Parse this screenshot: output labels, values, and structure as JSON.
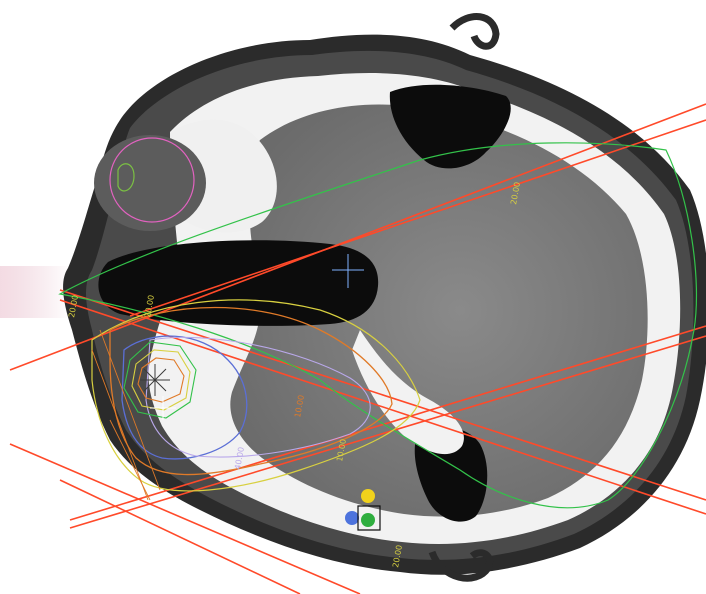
{
  "image": {
    "subject": "axial-ct-head-radiotherapy-plan",
    "background_color": "#ffffff"
  },
  "colors": {
    "body_outline": "#2b2b2b",
    "skull_bone": "#f2f2f2",
    "soft_tissue": "#4a4a4a",
    "brain": "#7c7c7c",
    "air": "#0c0c0c",
    "beam_lines": "#ff4a2a",
    "isodose_outer_green": "#33c24a",
    "isodose_yellow": "#d8d040",
    "isodose_orange": "#e07a28",
    "isodose_blue": "#5b6fd6",
    "isodose_lavender": "#b9a8ea",
    "eye_contour": "#e262c0",
    "lens_contour": "#7bc043",
    "isocenter_cross": "#7fb2ff",
    "marker_yellow": "#f1d21c",
    "marker_blue": "#4d73dd",
    "marker_green": "#2fae3f"
  },
  "isodose_labels": [
    {
      "id": "iso-label-1",
      "text": "20.00"
    },
    {
      "id": "iso-label-2",
      "text": "20.00"
    },
    {
      "id": "iso-label-3",
      "text": "20.00"
    },
    {
      "id": "iso-label-4",
      "text": "10.00"
    },
    {
      "id": "iso-label-5",
      "text": "40.00"
    },
    {
      "id": "iso-label-6",
      "text": "10.00"
    },
    {
      "id": "iso-label-7",
      "text": "20.00"
    }
  ]
}
